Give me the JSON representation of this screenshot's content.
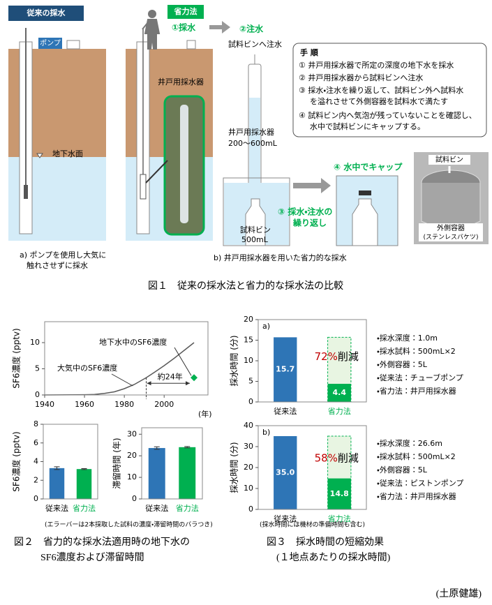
{
  "figure1": {
    "panel_a": {
      "title": "従来の採水",
      "pump": "ポンプ",
      "water_table": "地下水面",
      "caption": [
        "a) ポンプを使用し大気に",
        "触れさせずに採水"
      ]
    },
    "panel_b": {
      "title": "省力法",
      "step1": "①採水",
      "step2": "②注水",
      "pour_label": "試料ビンへ注水",
      "sampler_label": "井戸用採水器",
      "sampler_volume": [
        "井戸用採水器",
        "200～600mL"
      ],
      "bottle": [
        "試料ビン",
        "500mL"
      ],
      "step3": [
        "③ 採水・注水の",
        "繰り返し"
      ],
      "step4": "④ 水中でキャップ",
      "photo_bottle": "試料ビン",
      "photo_container": [
        "外側容器",
        "(ステンレスバケツ)"
      ],
      "caption": "b) 井戸用採水器を用いた省力的な採水"
    },
    "procedure": {
      "title": "手 順",
      "steps": [
        [
          "① 井戸用採水器で所定の深度の地下水を採水"
        ],
        [
          "② 井戸用採水器から試料ビンへ注水"
        ],
        [
          "③ 採水・注水を繰り返して、試料ビン外へ試料水",
          "を溢れさせて外側容器を試料水で満たす"
        ],
        [
          "④ 試料ビン内へ気泡が残っていないことを確認し、",
          "水中で試料ビンにキャップする。"
        ]
      ]
    },
    "caption": "図１　従来の採水法と省力的な採水法の比較"
  },
  "chart_data": [
    {
      "type": "line",
      "y_label": "SF6濃度 (pptv)",
      "x_label": "(年)",
      "xlim": [
        1940,
        2022
      ],
      "xticks": [
        1940,
        1960,
        1980,
        2000
      ],
      "ylim": [
        0,
        14
      ],
      "yticks": [
        0,
        5,
        10
      ],
      "interval_label": "約24年",
      "series": [
        {
          "name": "大気中のSF6濃度",
          "color": "#595959",
          "x": [
            1940,
            1960,
            1965,
            1970,
            1975,
            1980,
            1985,
            1991,
            1995,
            2000,
            2005,
            2010,
            2015
          ],
          "values": [
            0,
            0.05,
            0.1,
            0.3,
            0.6,
            1.2,
            2.0,
            3.3,
            4.3,
            5.6,
            7.0,
            8.5,
            10
          ]
        },
        {
          "name": "地下水中のSF6濃度",
          "color": "#00b050",
          "x": [
            2015
          ],
          "values": [
            3.3
          ]
        }
      ]
    },
    {
      "type": "bar",
      "y_label": "SF6濃度 (pptv)",
      "categories": [
        "従来法",
        "省力法"
      ],
      "category_colors": [
        "#000000",
        "#00b050"
      ],
      "colors": [
        "#2e75b6",
        "#00b050"
      ],
      "values": [
        3.3,
        3.2
      ],
      "errors": [
        0.15,
        0.05
      ],
      "ylim": [
        0,
        8
      ],
      "yticks": [
        0,
        2,
        4,
        6,
        8
      ]
    },
    {
      "type": "bar",
      "y_label": "滞留時間 (年)",
      "categories": [
        "従来法",
        "省力法"
      ],
      "category_colors": [
        "#000000",
        "#00b050"
      ],
      "colors": [
        "#2e75b6",
        "#00b050"
      ],
      "values": [
        23.6,
        24.0
      ],
      "errors": [
        0.6,
        0.3
      ],
      "ylim": [
        0,
        33
      ],
      "yticks": [
        0,
        10,
        20,
        30
      ]
    },
    {
      "type": "bar",
      "panel": "a)",
      "y_label": "採水時間 (分)",
      "categories": [
        "従来法",
        "省力法"
      ],
      "category_colors": [
        "#000000",
        "#00b050"
      ],
      "colors": [
        "#2e75b6",
        "#00b050"
      ],
      "values": [
        15.7,
        4.4
      ],
      "value_labels": [
        "15.7",
        "4.4"
      ],
      "ylim": [
        0,
        20
      ],
      "yticks": [
        0,
        5,
        10,
        15,
        20
      ],
      "reduction": {
        "percent": "72%",
        "text": "削減"
      },
      "conditions": [
        "・採水深度：1.0m",
        "・採水試料：500mL×2",
        "・外側容器：5L",
        "・従来法：チューブポンプ",
        "・省力法：井戸用採水器"
      ]
    },
    {
      "type": "bar",
      "panel": "b)",
      "y_label": "採水時間 (分)",
      "categories": [
        "従来法",
        "省力法"
      ],
      "category_colors": [
        "#000000",
        "#00b050"
      ],
      "colors": [
        "#2e75b6",
        "#00b050"
      ],
      "values": [
        35.0,
        14.8
      ],
      "value_labels": [
        "35.0",
        "14.8"
      ],
      "ylim": [
        0,
        40
      ],
      "yticks": [
        0,
        10,
        20,
        30,
        40
      ],
      "reduction": {
        "percent": "58%",
        "text": "削減"
      },
      "conditions": [
        "・採水深度：26.6m",
        "・採水試料：500mL×2",
        "・外側容器：5L",
        "・従来法：ピストンポンプ",
        "・省力法：井戸用採水器"
      ]
    }
  ],
  "figure2": {
    "note": "(エラーバーは2本採取した試料の濃度・滞留時間のバラつき)",
    "caption": [
      "図２　省力的な採水法適用時の地下水の",
      "SF6濃度および滞留時間"
    ]
  },
  "figure3": {
    "note": "(採水時間には機材の準備時間も含む)",
    "caption": [
      "図３　採水時間の短縮効果",
      "(１地点あたりの採水時間)"
    ]
  },
  "author": "(土原健雄)"
}
